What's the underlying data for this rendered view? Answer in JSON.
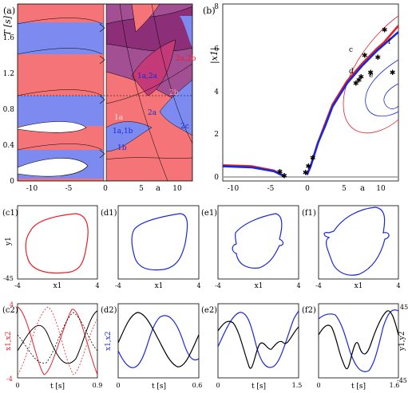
{
  "colors": {
    "red": "#e8202a",
    "blue": "#1b28d6",
    "black": "#000000",
    "light_red": "#f57478",
    "light_blue": "#7d8af0",
    "purple": "#8c2f78",
    "mid_purple": "#a34f93",
    "magenta": "#c43a78"
  },
  "panel_a": {
    "label": "(a)",
    "ylabel": "T [s]",
    "xlabel": "a",
    "yticks": [
      "0",
      "0.4",
      "0.8",
      "1.2",
      "1.6"
    ],
    "xticks": [
      "-10",
      "-5",
      "0",
      "5",
      "10"
    ],
    "region_labels": [
      "1a",
      "1a,1b",
      "1b",
      "2a",
      "1a,2a",
      "2a,2b",
      "2b",
      "2c",
      "2a"
    ]
  },
  "panel_b": {
    "label": "(b)",
    "ylabel": "|x1|",
    "xlabel": "a",
    "yticks": [
      "0",
      "2",
      "4",
      "6",
      "8"
    ],
    "xticks": [
      "-10",
      "-5",
      "0",
      "5",
      "10"
    ],
    "point_labels": [
      "c",
      "d",
      "e",
      "f"
    ]
  },
  "row_c1": {
    "panels": [
      {
        "label": "(c1)",
        "color": "red"
      },
      {
        "label": "(d1)",
        "color": "blue"
      },
      {
        "label": "(e1)",
        "color": "blue"
      },
      {
        "label": "(f1)",
        "color": "blue"
      }
    ],
    "ylabel": "y1",
    "xlabel": "x1",
    "y_top": "45",
    "y_bottom": "-45",
    "x_left": "-4",
    "x_right": "4"
  },
  "row_c2": {
    "panels": [
      {
        "label": "(c2)",
        "x_right": "0.9"
      },
      {
        "label": "(d2)",
        "x_right": "0.6"
      },
      {
        "label": "(e2)",
        "x_right": "1.5"
      },
      {
        "label": "(f2)",
        "x_right": "1.6"
      }
    ],
    "x_left": "0",
    "xlabel": "t [s]",
    "left_ylabel": "x1,x2",
    "left_y_top": "4",
    "left_y_bottom": "-4",
    "right_ylabel": "y1,y2",
    "right_y_top": "45",
    "right_y_bottom": "-45"
  },
  "chart_data": [
    {
      "type": "area",
      "panel": "(a)",
      "xlabel": "a",
      "ylabel": "T [s]",
      "xlim": [
        -12,
        12
      ],
      "ylim": [
        0,
        1.8
      ],
      "xticks": [
        -10,
        -5,
        0,
        5,
        10
      ],
      "yticks": [
        0,
        0.4,
        0.8,
        1.2,
        1.6
      ]
    },
    {
      "type": "line",
      "panel": "(b)",
      "xlabel": "a",
      "ylabel": "|x1|",
      "xlim": [
        -12,
        12
      ],
      "ylim": [
        0,
        8
      ],
      "xticks": [
        -10,
        -5,
        0,
        5,
        10
      ],
      "yticks": [
        0,
        2,
        4,
        6,
        8
      ],
      "series": [
        {
          "color": "red",
          "x": [
            -12,
            -8,
            -5,
            -4,
            -3.5
          ],
          "y": [
            0.55,
            0.5,
            0.3,
            0.12,
            0.0
          ]
        },
        {
          "color": "blue",
          "x": [
            -12,
            -8,
            -5,
            -4,
            -3.5
          ],
          "y": [
            0.5,
            0.45,
            0.27,
            0.1,
            0.0
          ]
        },
        {
          "color": "red",
          "x": [
            -0.5,
            0,
            1,
            2,
            3,
            5,
            7,
            9,
            10,
            12
          ],
          "y": [
            0.1,
            0.5,
            1.6,
            2.5,
            3.4,
            4.5,
            5.3,
            6.0,
            6.3,
            7.1
          ]
        },
        {
          "color": "blue",
          "x": [
            -0.5,
            0,
            1,
            2,
            3,
            5,
            7,
            9,
            10,
            12
          ],
          "y": [
            0.1,
            0.5,
            1.6,
            2.4,
            3.3,
            4.4,
            5.2,
            5.9,
            6.2,
            6.8
          ]
        }
      ],
      "markers": {
        "x": [
          -4.2,
          -3.6,
          -0.7,
          -0.3,
          0.3,
          6.2,
          6.6,
          6.9,
          7.4,
          8.2,
          9.2,
          10.1,
          11.2
        ],
        "y": [
          0.25,
          0.05,
          0.2,
          0.5,
          0.9,
          4.4,
          4.55,
          4.7,
          5.7,
          4.9,
          5.6,
          6.9,
          4.9
        ]
      }
    },
    {
      "type": "line",
      "panel": "(c1)",
      "xlim": [
        -4,
        4
      ],
      "ylim": [
        -45,
        45
      ],
      "xlabel": "x1",
      "ylabel": "y1"
    },
    {
      "type": "line",
      "panel": "(d1)",
      "xlim": [
        -4,
        4
      ],
      "ylim": [
        -45,
        45
      ],
      "xlabel": "x1",
      "ylabel": "y1"
    },
    {
      "type": "line",
      "panel": "(e1)",
      "xlim": [
        -4,
        4
      ],
      "ylim": [
        -45,
        45
      ],
      "xlabel": "x1",
      "ylabel": "y1"
    },
    {
      "type": "line",
      "panel": "(f1)",
      "xlim": [
        -4,
        4
      ],
      "ylim": [
        -45,
        45
      ],
      "xlabel": "x1",
      "ylabel": "y1"
    },
    {
      "type": "line",
      "panel": "(c2)",
      "xlim": [
        0,
        0.9
      ],
      "ylim": [
        -4,
        4
      ],
      "xlabel": "t [s]",
      "ylabel": "x1,x2"
    },
    {
      "type": "line",
      "panel": "(d2)",
      "xlim": [
        0,
        0.6
      ],
      "xlabel": "t [s]",
      "ylabel": "x1,x2"
    },
    {
      "type": "line",
      "panel": "(e2)",
      "xlim": [
        0,
        1.5
      ],
      "xlabel": "t [s]"
    },
    {
      "type": "line",
      "panel": "(f2)",
      "xlim": [
        0,
        1.6
      ],
      "ylim": [
        -45,
        45
      ],
      "xlabel": "t [s]",
      "ylabel": "y1,y2"
    }
  ]
}
